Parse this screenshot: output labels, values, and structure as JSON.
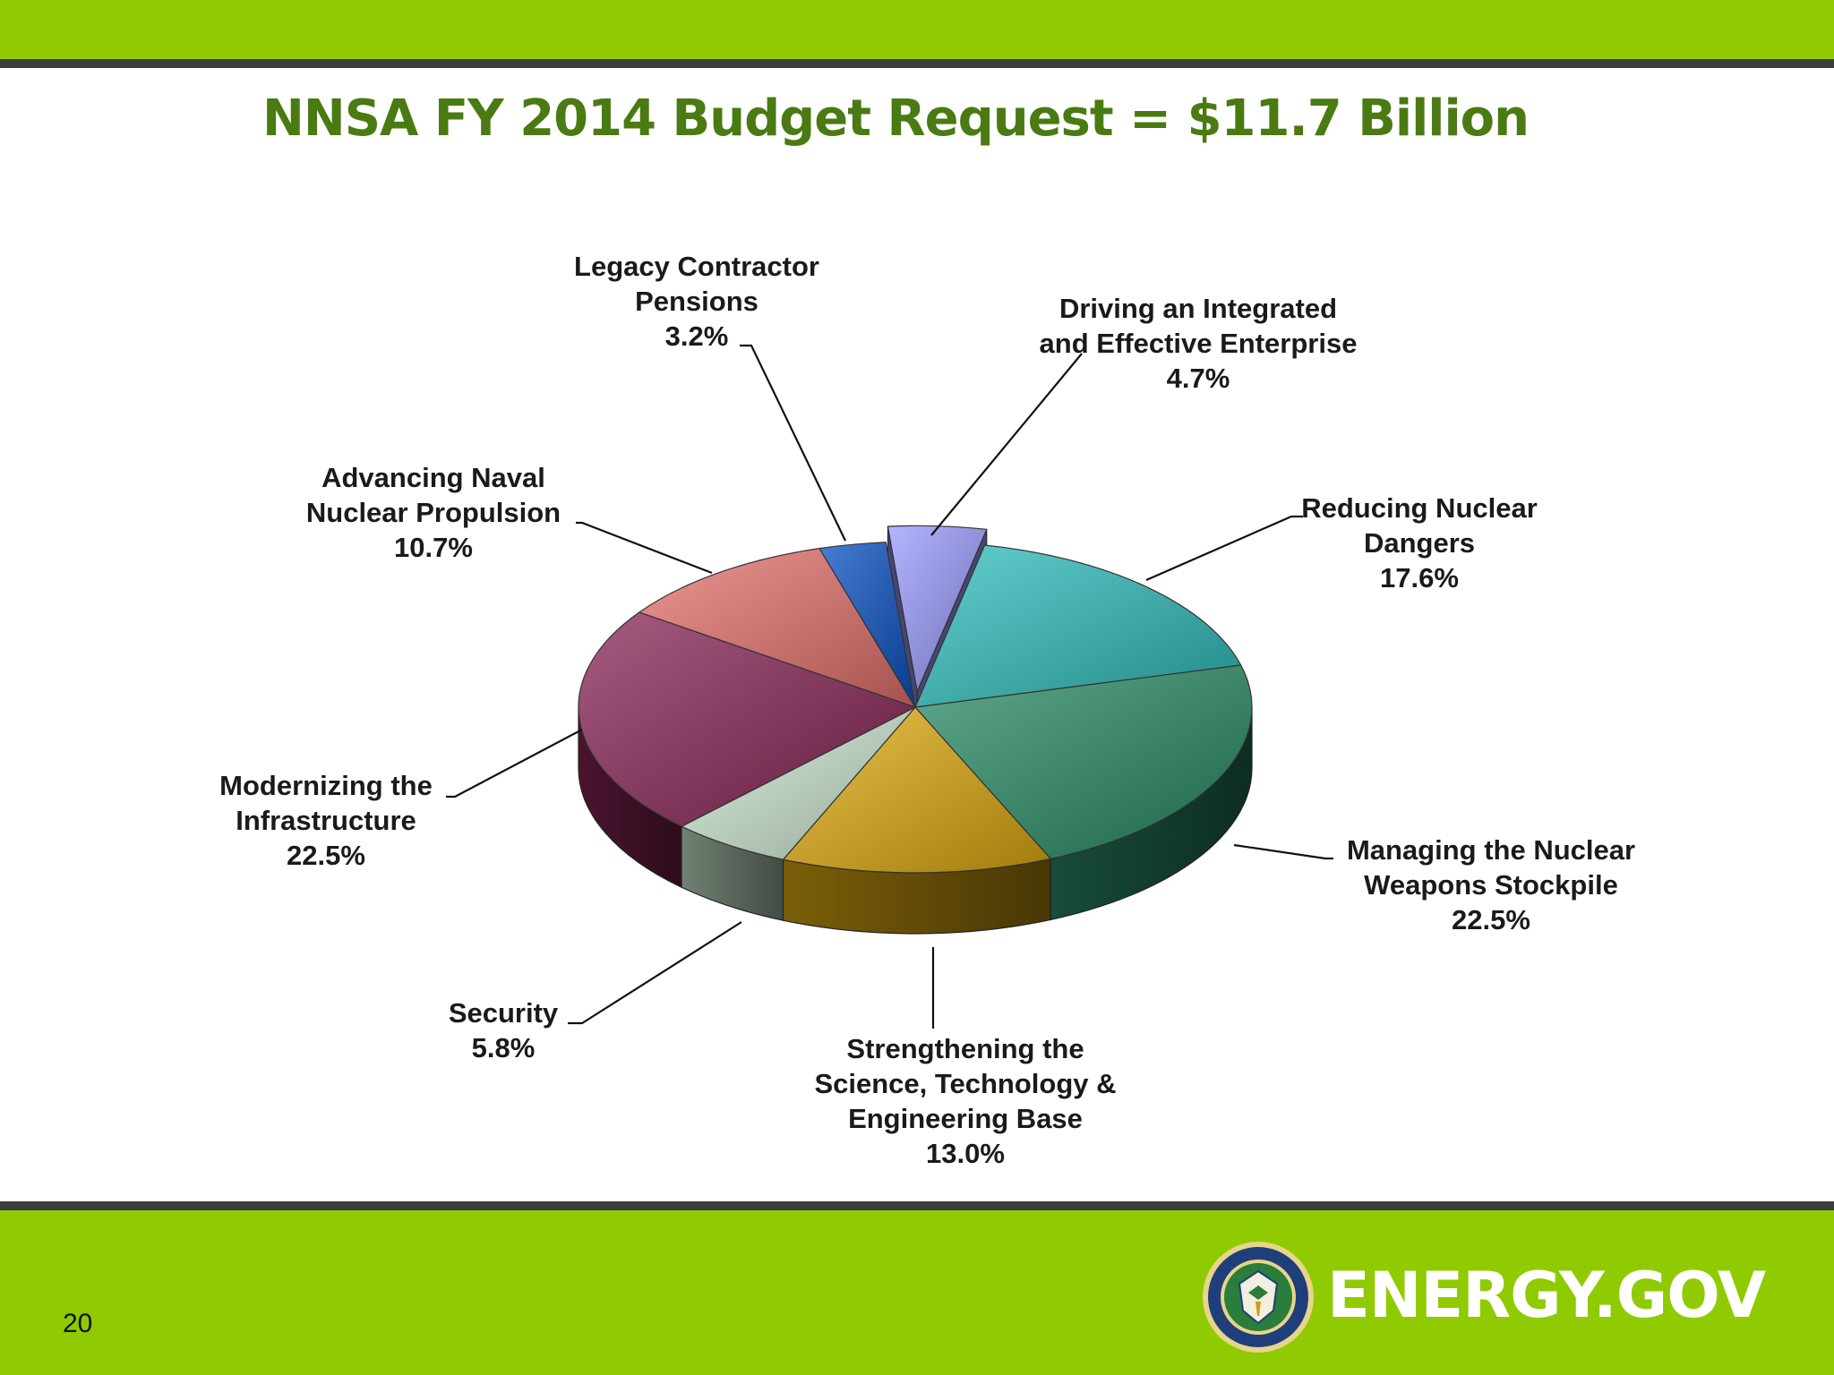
{
  "slide": {
    "title": "NNSA FY 2014 Budget Request = $11.7 Billion",
    "page_number": "20",
    "brand": "ENERGY.GOV",
    "colors": {
      "band": "#8fcb00",
      "rule": "#3a3c3e",
      "title": "#4a7a12"
    }
  },
  "chart_data": {
    "type": "pie",
    "title": "NNSA FY 2014 Budget Request = $11.7 Billion",
    "style": "3d-exploded-perspective",
    "unit": "%",
    "slices": [
      {
        "lines": [
          "Driving an Integrated",
          "and Effective Enterprise"
        ],
        "pct_text": "4.7%",
        "value": 4.7,
        "color": "#9b9bff"
      },
      {
        "lines": [
          "Reducing Nuclear",
          "Dangers"
        ],
        "pct_text": "17.6%",
        "value": 17.6,
        "color": "#2fbfbd"
      },
      {
        "lines": [
          "Managing the Nuclear",
          "Weapons Stockpile"
        ],
        "pct_text": "22.5%",
        "value": 22.5,
        "color": "#2a8c66"
      },
      {
        "lines": [
          "Strengthening the",
          "Science, Technology &",
          "Engineering Base"
        ],
        "pct_text": "13.0%",
        "value": 13.0,
        "color": "#e0ac10"
      },
      {
        "lines": [
          "Security"
        ],
        "pct_text": "5.8%",
        "value": 5.8,
        "color": "#cfead3"
      },
      {
        "lines": [
          "Modernizing the",
          "Infrastructure"
        ],
        "pct_text": "22.5%",
        "value": 22.5,
        "color": "#8a2556"
      },
      {
        "lines": [
          "Advancing Naval",
          "Nuclear Propulsion"
        ],
        "pct_text": "10.7%",
        "value": 10.7,
        "color": "#e6736e"
      },
      {
        "lines": [
          "Legacy Contractor",
          "Pensions"
        ],
        "pct_text": "3.2%",
        "value": 3.2,
        "color": "#0a52c4"
      }
    ]
  }
}
